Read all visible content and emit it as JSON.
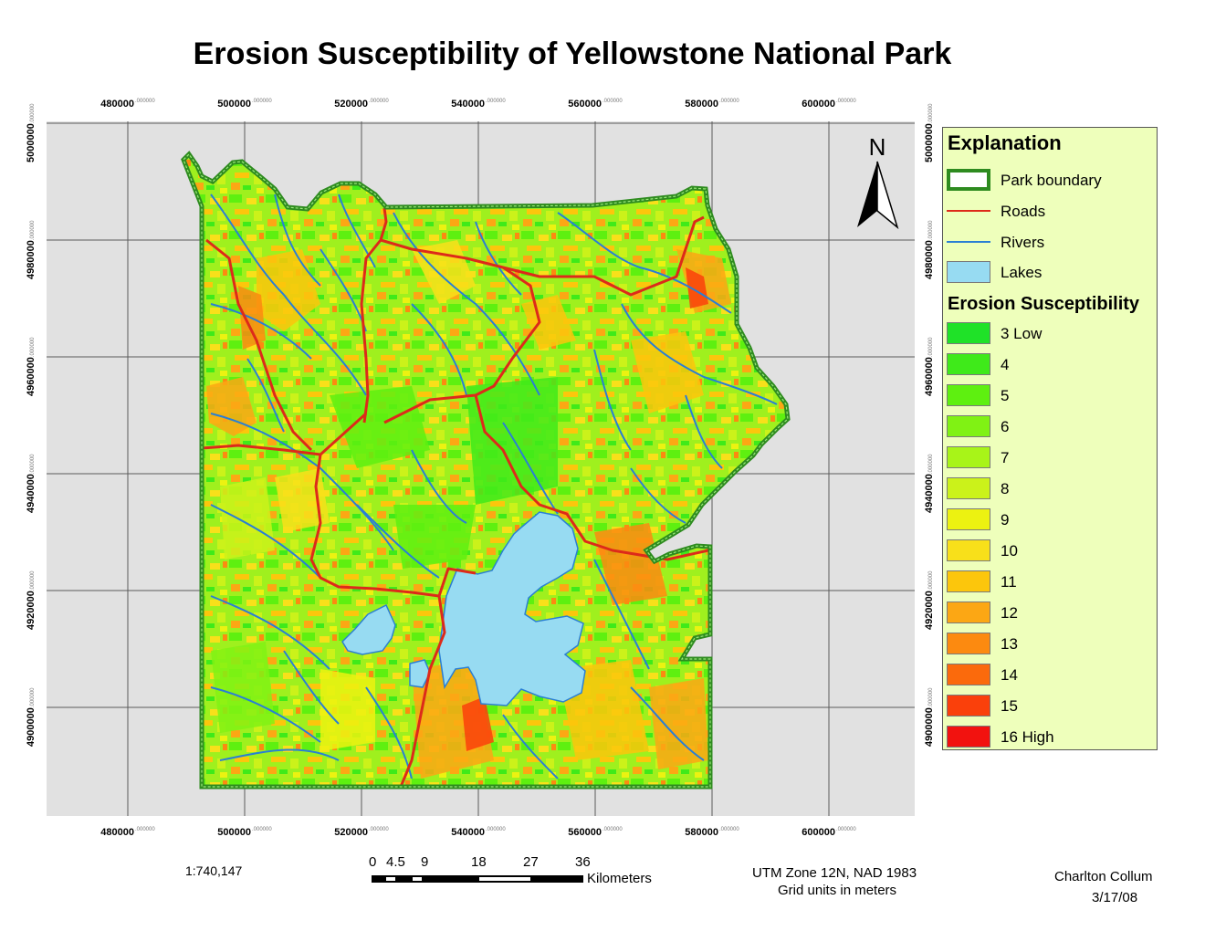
{
  "title": "Erosion Susceptibility of Yellowstone National Park",
  "grid": {
    "easting_labels": [
      "480000",
      "500000",
      "520000",
      "540000",
      "560000",
      "580000",
      "600000"
    ],
    "northing_labels": [
      "5000000",
      "4980000",
      "4960000",
      "4940000",
      "4920000",
      "4900000"
    ],
    "decimal_suffix": ".000000"
  },
  "north_arrow": {
    "label": "N",
    "icon": "north-arrow-icon"
  },
  "legend": {
    "title": "Explanation",
    "features": [
      {
        "label": "Park boundary",
        "kind": "boundary",
        "fill": "#ffffff",
        "stroke": "#2e8b1f"
      },
      {
        "label": "Roads",
        "kind": "line",
        "color": "#dd2a1a"
      },
      {
        "label": "Rivers",
        "kind": "line",
        "color": "#2a7fd4"
      },
      {
        "label": "Lakes",
        "kind": "fill",
        "color": "#97dbf2"
      }
    ],
    "ramp_title": "Erosion Susceptibility",
    "classes": [
      {
        "label": "3 Low",
        "color": "#1fe228"
      },
      {
        "label": "4",
        "color": "#3fea1a"
      },
      {
        "label": "5",
        "color": "#5ef010"
      },
      {
        "label": "6",
        "color": "#80f214"
      },
      {
        "label": "7",
        "color": "#a8f418"
      },
      {
        "label": "8",
        "color": "#cbf21a"
      },
      {
        "label": "9",
        "color": "#ecf211"
      },
      {
        "label": "10",
        "color": "#f8e01a"
      },
      {
        "label": "11",
        "color": "#fcc60c"
      },
      {
        "label": "12",
        "color": "#fca714"
      },
      {
        "label": "13",
        "color": "#fc8a10"
      },
      {
        "label": "14",
        "color": "#fb6a0c"
      },
      {
        "label": "15",
        "color": "#fa400b"
      },
      {
        "label": "16 High",
        "color": "#f2120f"
      }
    ]
  },
  "scale": {
    "ratio": "1:740,147",
    "bar_labels": [
      "0",
      "4.5",
      "9",
      "18",
      "27",
      "36"
    ],
    "units": "Kilometers"
  },
  "projection": {
    "line1": "UTM Zone 12N, NAD 1983",
    "line2": "Grid units in meters"
  },
  "author": {
    "name": "Charlton Collum",
    "date": "3/17/08"
  }
}
